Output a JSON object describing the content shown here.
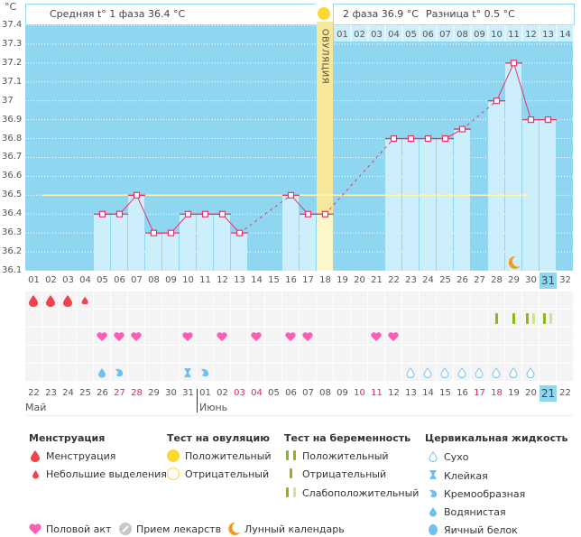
{
  "header": {
    "unit": "°C",
    "phase1_label": "Средняя t° 1 фаза 36.4 °C",
    "phase2_label": "2 фаза 36.9 °C",
    "difference_label": "Разница t° 0.5 °C",
    "ovulation_label": "ОВУЛЯЦИЯ"
  },
  "chart_data": {
    "type": "line",
    "title": "Basal body temperature chart",
    "ylabel": "°C",
    "ylim": [
      36.1,
      37.4
    ],
    "yticks": [
      "37.4",
      "37.3",
      "37.2",
      "37.1",
      "37",
      "36.9",
      "36.8",
      "36.7",
      "36.6",
      "36.5",
      "36.4",
      "36.3",
      "36.2",
      "36.1"
    ],
    "cycle_days": [
      "01",
      "02",
      "03",
      "04",
      "05",
      "06",
      "07",
      "08",
      "09",
      "10",
      "11",
      "12",
      "13",
      "14",
      "15",
      "16",
      "17",
      "18",
      "19",
      "20",
      "21",
      "22",
      "23",
      "24",
      "25",
      "26",
      "27",
      "28",
      "29",
      "30",
      "31",
      "32"
    ],
    "temperatures": [
      null,
      null,
      null,
      null,
      36.4,
      36.4,
      36.5,
      36.3,
      36.3,
      36.4,
      36.4,
      36.4,
      36.3,
      null,
      null,
      36.5,
      36.4,
      36.4,
      null,
      null,
      null,
      36.8,
      36.8,
      36.8,
      36.8,
      36.85,
      null,
      37.0,
      37.2,
      36.9,
      36.9,
      null
    ],
    "coverline": 36.5,
    "ovulation_day": "18",
    "post_ovulation_days": [
      "01",
      "02",
      "03",
      "04",
      "05",
      "06",
      "07",
      "08",
      "09",
      "10",
      "11",
      "12",
      "13",
      "14"
    ],
    "current_cycle_day": "31",
    "grid": true
  },
  "calendar": {
    "dates": [
      "22",
      "23",
      "24",
      "25",
      "26",
      "27",
      "28",
      "29",
      "30",
      "31",
      "01",
      "02",
      "03",
      "04",
      "05",
      "06",
      "07",
      "08",
      "09",
      "10",
      "11",
      "12",
      "13",
      "14",
      "15",
      "16",
      "17",
      "18",
      "19",
      "20",
      "21",
      "22"
    ],
    "weekend_indices": [
      5,
      6,
      12,
      13,
      19,
      20,
      26,
      27
    ],
    "today_index": 30,
    "month_labels": [
      {
        "label": "Май",
        "start_index": 0
      },
      {
        "label": "Июнь",
        "start_index": 10
      }
    ]
  },
  "rows": {
    "menstruation": {
      "1": "full",
      "2": "full",
      "3": "full",
      "4": "light"
    },
    "pregnancy_test": {
      "28": "negative",
      "29": "negative",
      "30": "weak",
      "31": "weak"
    },
    "intercourse": [
      "05",
      "06",
      "07",
      "10",
      "12",
      "14",
      "16",
      "17",
      "21",
      "22"
    ],
    "cervical": {
      "5": "watery",
      "6": "creamy",
      "10": "sticky",
      "11": "creamy",
      "23": "dry",
      "24": "dry",
      "25": "dry",
      "26": "dry",
      "27": "dry",
      "28": "dry",
      "29": "dry",
      "30": "dry"
    },
    "moon_day": "29"
  },
  "legend": {
    "menstruation": {
      "title": "Менструация",
      "items": [
        "Менструация",
        "Небольшие выделения"
      ]
    },
    "ovulation_test": {
      "title": "Тест на овуляцию",
      "items": [
        "Положительный",
        "Отрицательный"
      ]
    },
    "pregnancy_test": {
      "title": "Тест на беременность",
      "items": [
        "Положительный",
        "Отрицательный",
        "Слабоположительный"
      ]
    },
    "cervical_fluid": {
      "title": "Цервикальная жидкость",
      "items": [
        "Сухо",
        "Клейкая",
        "Кремообразная",
        "Водянистая",
        "Яичный белок"
      ]
    },
    "bottom": [
      "Половой акт",
      "Прием лекарств",
      "Лунный календарь"
    ]
  },
  "colors": {
    "chart_bg": "#8fd6f1",
    "bar_fill": "#cdeefb",
    "ovulation_col": "#f7e89a",
    "line": "#e8336a",
    "coverline": "#fff3b0",
    "blood": "#f0434a",
    "heart": "#ff5cb5",
    "test_green": "#8ab91a",
    "test_light": "#cfe29a",
    "fluid": "#6fc0ee",
    "moon": "#f59a1b",
    "weekend": "#e0245e"
  }
}
